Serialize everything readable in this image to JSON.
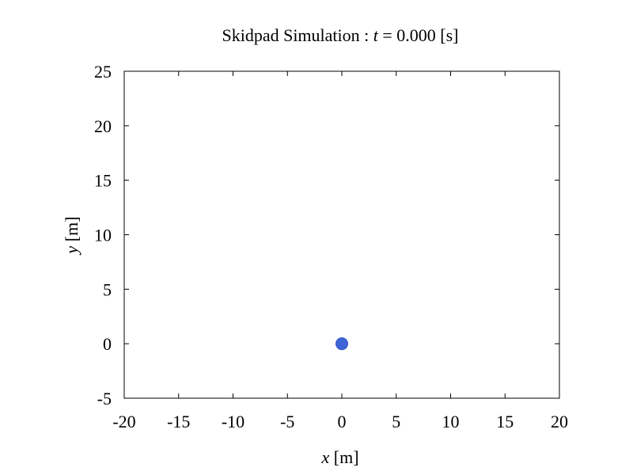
{
  "chart_data": {
    "type": "scatter",
    "title": {
      "prefix": "Skidpad Simulation : ",
      "variable": "t",
      "suffix": " = 0.000 [s]"
    },
    "xlabel": {
      "variable": "x",
      "unit": " [m]"
    },
    "ylabel": {
      "variable": "y",
      "unit": " [m]"
    },
    "xlim": [
      -20,
      20
    ],
    "ylim": [
      -5,
      25
    ],
    "xticks": [
      -20,
      -15,
      -10,
      -5,
      0,
      5,
      10,
      15,
      20
    ],
    "yticks": [
      -5,
      0,
      5,
      10,
      15,
      20,
      25
    ],
    "grid": false,
    "legend": "none",
    "series": [
      {
        "points": [
          {
            "x": 0,
            "y": 0
          }
        ],
        "color": "#3e64d6"
      }
    ]
  }
}
